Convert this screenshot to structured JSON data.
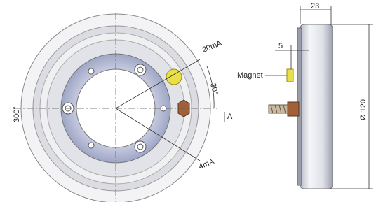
{
  "labels": {
    "current_high": "20mA",
    "angle_small": "30°",
    "angle_large": "300°",
    "section": "A",
    "current_low": "4mA",
    "width": "23",
    "offset": "5",
    "magnet": "Magnet",
    "diameter": "Ø 120"
  }
}
